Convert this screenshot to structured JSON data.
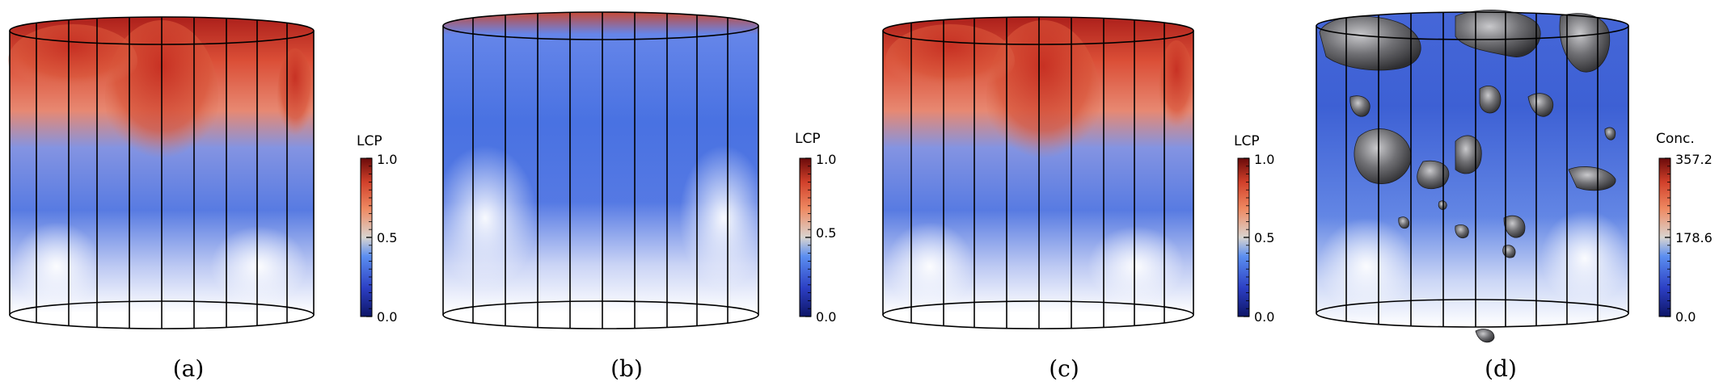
{
  "panels": [
    {
      "caption": "(a)",
      "colorbar": {
        "title": "LCP",
        "ticks": [
          "1.0",
          "0.5",
          "0.0"
        ]
      }
    },
    {
      "caption": "(b)",
      "colorbar": {
        "title": "LCP",
        "ticks": [
          "1.0",
          "0.5",
          "0.0"
        ]
      }
    },
    {
      "caption": "(c)",
      "colorbar": {
        "title": "LCP",
        "ticks": [
          "1.0",
          "0.5",
          "0.0"
        ]
      }
    },
    {
      "caption": "(d)",
      "colorbar": {
        "title": "Conc.",
        "ticks": [
          "357.2",
          "178.6",
          "0.0"
        ]
      }
    }
  ],
  "colors": {
    "cmap_low": "#1a237e",
    "cmap_mid_low": "#3d6ee0",
    "cmap_mid": "#d9d4d0",
    "cmap_mid_high": "#e2643f",
    "cmap_high": "#7a0f0f",
    "isosurface": "#6f6f72",
    "outline": "#000000"
  }
}
